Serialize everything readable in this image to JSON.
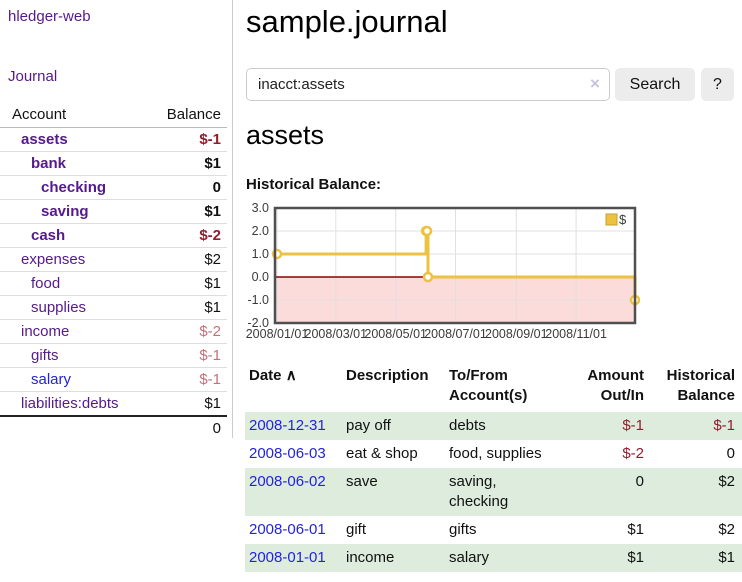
{
  "sidebar": {
    "title": "hledger-web",
    "journal_link": "Journal",
    "accounts_table": {
      "headers": {
        "account": "Account",
        "balance": "Balance"
      },
      "rows": [
        {
          "name": "assets",
          "level": 0,
          "bold": true,
          "link_color": "purple",
          "balance": "$-1",
          "balance_tone": "strong-neg"
        },
        {
          "name": "bank",
          "level": 1,
          "bold": true,
          "link_color": "purple",
          "balance": "$1",
          "balance_tone": ""
        },
        {
          "name": "checking",
          "level": 2,
          "bold": true,
          "link_color": "purple",
          "balance": "0",
          "balance_tone": ""
        },
        {
          "name": "saving",
          "level": 2,
          "bold": true,
          "link_color": "purple",
          "balance": "$1",
          "balance_tone": ""
        },
        {
          "name": "cash",
          "level": 1,
          "bold": true,
          "link_color": "purple",
          "balance": "$-2",
          "balance_tone": "strong-neg"
        },
        {
          "name": "expenses",
          "level": 0,
          "bold": false,
          "link_color": "purple",
          "balance": "$2",
          "balance_tone": ""
        },
        {
          "name": "food",
          "level": 1,
          "bold": false,
          "link_color": "purple",
          "balance": "$1",
          "balance_tone": ""
        },
        {
          "name": "supplies",
          "level": 1,
          "bold": false,
          "link_color": "purple",
          "balance": "$1",
          "balance_tone": ""
        },
        {
          "name": "income",
          "level": 0,
          "bold": false,
          "link_color": "purple",
          "balance": "$-2",
          "balance_tone": "light-neg"
        },
        {
          "name": "gifts",
          "level": 1,
          "bold": false,
          "link_color": "purple",
          "balance": "$-1",
          "balance_tone": "light-neg"
        },
        {
          "name": "salary",
          "level": 1,
          "bold": false,
          "link_color": "blue",
          "balance": "$-1",
          "balance_tone": "light-neg"
        },
        {
          "name": "liabilities:debts",
          "level": 0,
          "bold": false,
          "link_color": "purple",
          "balance": "$1",
          "balance_tone": ""
        }
      ],
      "total": "0"
    }
  },
  "main": {
    "title": "sample.journal",
    "search": {
      "value": "inacct:assets",
      "clear_icon": "×",
      "search_button": "Search",
      "help_button": "?"
    },
    "account_heading": "assets",
    "chart_label": "Historical Balance:",
    "register": {
      "headers": {
        "date": "Date",
        "sort_icon": "∧",
        "description": "Description",
        "accounts": "To/From Account(s)",
        "amount": "Amount Out/In",
        "balance": "Historical Balance"
      },
      "rows": [
        {
          "date": "2008-12-31",
          "description": "pay off",
          "accounts": "debts",
          "amount": "$-1",
          "balance": "$-1",
          "green": true
        },
        {
          "date": "2008-06-03",
          "description": "eat & shop",
          "accounts": "food, supplies",
          "amount": "$-2",
          "balance": "0",
          "green": false
        },
        {
          "date": "2008-06-02",
          "description": "save",
          "accounts": "saving, checking",
          "amount": "0",
          "balance": "$2",
          "green": true
        },
        {
          "date": "2008-06-01",
          "description": "gift",
          "accounts": "gifts",
          "amount": "$1",
          "balance": "$2",
          "green": false
        },
        {
          "date": "2008-01-01",
          "description": "income",
          "accounts": "salary",
          "amount": "$1",
          "balance": "$1",
          "green": true
        }
      ]
    }
  },
  "chart_data": {
    "type": "line",
    "step": true,
    "title": "Historical Balance:",
    "series": [
      {
        "name": "$",
        "color": "#edc240",
        "x": [
          "2008-01-01",
          "2008-06-01",
          "2008-06-02",
          "2008-06-03",
          "2008-12-31"
        ],
        "y": [
          1,
          2,
          2,
          0,
          -1
        ]
      }
    ],
    "ylim": [
      -2,
      3
    ],
    "yticks": [
      3,
      2,
      1,
      0,
      -1,
      -2
    ],
    "xlim": [
      "2007-12-30",
      "2008-12-31"
    ],
    "xticks": [
      "2008/01/01",
      "2008/03/01",
      "2008/05/01",
      "2008/07/01",
      "2008/09/01",
      "2008/11/01"
    ],
    "legend": {
      "position": "top-right",
      "label": "$"
    },
    "grid": true,
    "zero_line_color": "#8b0000",
    "negative_region_color": "#fcdbdb",
    "border_color": "#4f4f4f",
    "grid_color": "#e0e0e0",
    "axis_text_color": "#3b3b3b"
  },
  "colors": {
    "link_purple": "#551a8b",
    "link_blue": "#2323dc",
    "negative_strong": "#911d2d",
    "negative_light": "#c1707c",
    "row_green": "#ddecdd",
    "series_gold": "#edc240"
  }
}
